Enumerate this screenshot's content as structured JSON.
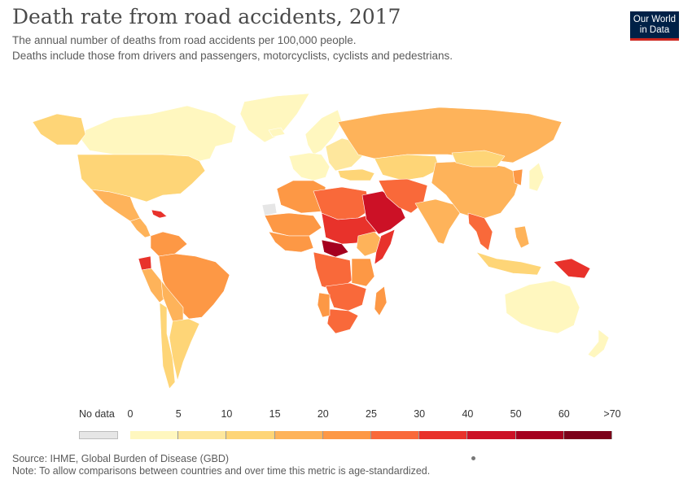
{
  "header": {
    "title": "Death rate from road accidents, 2017",
    "subtitle_line1": "The annual number of deaths from road accidents per 100,000 people.",
    "subtitle_line2": "Deaths include those from drivers and passengers, motorcyclists, cyclists and pedestrians."
  },
  "logo": {
    "line1": "Our World",
    "line2": "in Data"
  },
  "legend": {
    "nodata_label": "No data",
    "nodata_color": "#e6e6e6",
    "ticks": [
      "0",
      "5",
      "10",
      "15",
      "20",
      "25",
      "30",
      "40",
      "50",
      "60",
      ">70"
    ],
    "colors": [
      "#fff7bf",
      "#fee79d",
      "#fed577",
      "#feb35a",
      "#fd9845",
      "#f9693a",
      "#e8322b",
      "#cc1126",
      "#a5001f",
      "#7d001a"
    ]
  },
  "footer": {
    "source": "Source: IHME, Global Burden of Disease (GBD)",
    "note": "Note: To allow comparisons between countries and over time this metric is age-standardized."
  },
  "map_regions": [
    {
      "name": "greenland",
      "bin": 0
    },
    {
      "name": "canada",
      "bin": 0
    },
    {
      "name": "alaska",
      "bin": 2
    },
    {
      "name": "usa",
      "bin": 2
    },
    {
      "name": "mexico",
      "bin": 3
    },
    {
      "name": "central-america",
      "bin": 3
    },
    {
      "name": "caribbean-haiti",
      "bin": 6
    },
    {
      "name": "colombia-venezuela",
      "bin": 4
    },
    {
      "name": "ecuador",
      "bin": 6
    },
    {
      "name": "peru",
      "bin": 3
    },
    {
      "name": "brazil",
      "bin": 4
    },
    {
      "name": "bolivia-paraguay",
      "bin": 3
    },
    {
      "name": "chile",
      "bin": 2
    },
    {
      "name": "argentina",
      "bin": 2
    },
    {
      "name": "iceland",
      "bin": 0
    },
    {
      "name": "scandinavia",
      "bin": 0
    },
    {
      "name": "western-europe",
      "bin": 0
    },
    {
      "name": "eastern-europe",
      "bin": 1
    },
    {
      "name": "russia",
      "bin": 3
    },
    {
      "name": "kazakhstan",
      "bin": 2
    },
    {
      "name": "turkey",
      "bin": 2
    },
    {
      "name": "morocco-algeria",
      "bin": 4
    },
    {
      "name": "western-sahara",
      "bin": null
    },
    {
      "name": "libya-egypt",
      "bin": 5
    },
    {
      "name": "sahel",
      "bin": 4
    },
    {
      "name": "chad-sudan",
      "bin": 6
    },
    {
      "name": "west-africa",
      "bin": 4
    },
    {
      "name": "car",
      "bin": 8
    },
    {
      "name": "ethiopia",
      "bin": 3
    },
    {
      "name": "somalia",
      "bin": 6
    },
    {
      "name": "central-africa",
      "bin": 5
    },
    {
      "name": "east-africa",
      "bin": 4
    },
    {
      "name": "southern-africa",
      "bin": 5
    },
    {
      "name": "south-africa",
      "bin": 5
    },
    {
      "name": "namibia",
      "bin": 4
    },
    {
      "name": "madagascar",
      "bin": 4
    },
    {
      "name": "arabian-peninsula",
      "bin": 7
    },
    {
      "name": "iran-afghanistan",
      "bin": 5
    },
    {
      "name": "india",
      "bin": 3
    },
    {
      "name": "china",
      "bin": 3
    },
    {
      "name": "mongolia",
      "bin": 2
    },
    {
      "name": "korea",
      "bin": 4
    },
    {
      "name": "japan",
      "bin": 0
    },
    {
      "name": "mainland-se-asia",
      "bin": 5
    },
    {
      "name": "indonesia",
      "bin": 2
    },
    {
      "name": "philippines",
      "bin": 3
    },
    {
      "name": "papua-new-guinea",
      "bin": 6
    },
    {
      "name": "australia",
      "bin": 0
    },
    {
      "name": "new-zealand",
      "bin": 0
    }
  ]
}
